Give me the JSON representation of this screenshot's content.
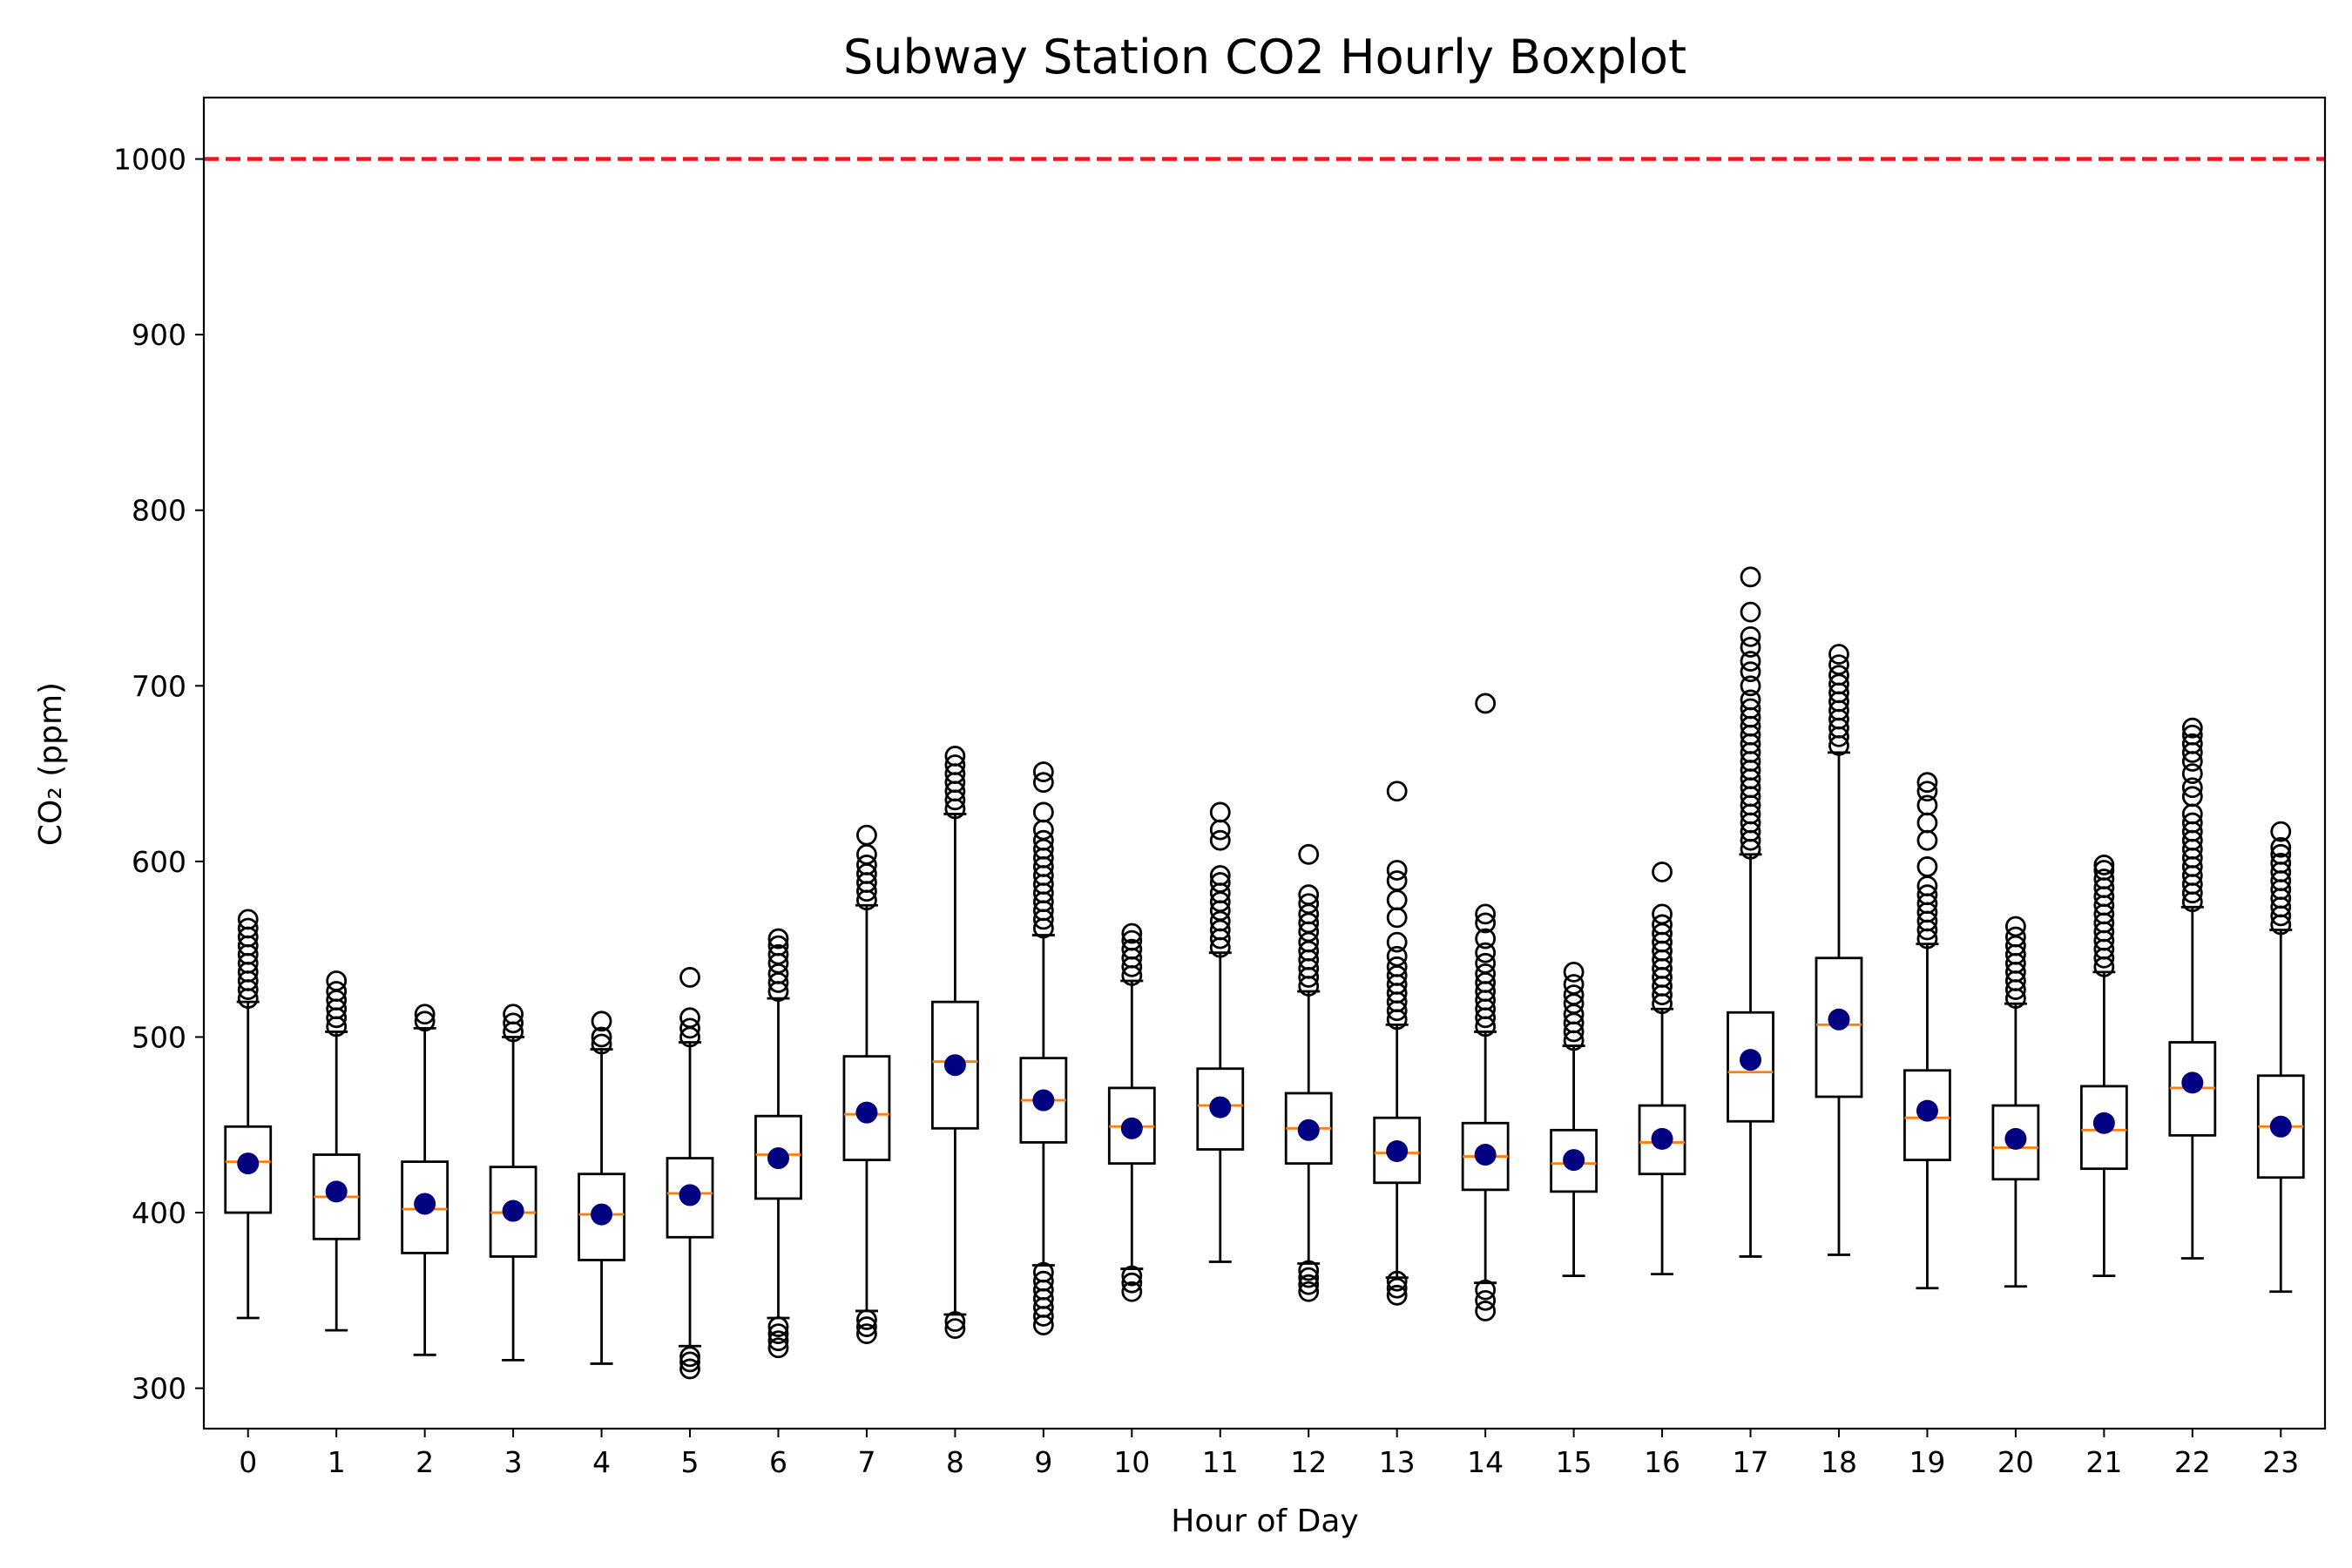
{
  "chart_data": {
    "type": "boxplot",
    "title": "Subway Station CO2 Hourly Boxplot",
    "xlabel": "Hour of Day",
    "ylabel": "CO₂ (ppm)",
    "ylim": [
      277,
      1035
    ],
    "yticks": [
      300,
      400,
      500,
      600,
      700,
      800,
      900,
      1000
    ],
    "grid": false,
    "threshold": {
      "value": 1000,
      "color": "#e8191c",
      "style": "dashed"
    },
    "colors": {
      "box": "#000000",
      "median": "#ff7f0e",
      "mean": "#000080",
      "outlier": "#000000"
    },
    "categories": [
      "0",
      "1",
      "2",
      "3",
      "4",
      "5",
      "6",
      "7",
      "8",
      "9",
      "10",
      "11",
      "12",
      "13",
      "14",
      "15",
      "16",
      "17",
      "18",
      "19",
      "20",
      "21",
      "22",
      "23"
    ],
    "boxes": [
      {
        "hour": "0",
        "whislo": 340,
        "q1": 400,
        "med": 429,
        "q3": 449,
        "whishi": 520,
        "mean": 428,
        "fliers": [
          522,
          527,
          532,
          537,
          542,
          547,
          552,
          557,
          562,
          567
        ]
      },
      {
        "hour": "1",
        "whislo": 333,
        "q1": 385,
        "med": 409,
        "q3": 433,
        "whishi": 503,
        "mean": 412,
        "fliers": [
          506,
          511,
          516,
          521,
          526,
          532
        ]
      },
      {
        "hour": "2",
        "whislo": 319,
        "q1": 377,
        "med": 402,
        "q3": 429,
        "whishi": 505,
        "mean": 405,
        "fliers": [
          509,
          513
        ]
      },
      {
        "hour": "3",
        "whislo": 316,
        "q1": 375,
        "med": 400,
        "q3": 426,
        "whishi": 500,
        "mean": 401,
        "fliers": [
          503,
          508,
          513
        ]
      },
      {
        "hour": "4",
        "whislo": 314,
        "q1": 373,
        "med": 399,
        "q3": 422,
        "whishi": 493,
        "mean": 399,
        "fliers": [
          496,
          500,
          509
        ]
      },
      {
        "hour": "5",
        "whislo": 324,
        "q1": 386,
        "med": 411,
        "q3": 431,
        "whishi": 497,
        "mean": 410,
        "fliers": [
          311,
          315,
          318,
          500,
          505,
          511,
          534
        ]
      },
      {
        "hour": "6",
        "whislo": 340,
        "q1": 408,
        "med": 433,
        "q3": 455,
        "whishi": 522,
        "mean": 431,
        "fliers": [
          323,
          327,
          331,
          335,
          526,
          531,
          536,
          542,
          547,
          552,
          556
        ]
      },
      {
        "hour": "7",
        "whislo": 344,
        "q1": 430,
        "med": 456,
        "q3": 489,
        "whishi": 575,
        "mean": 457,
        "fliers": [
          331,
          335,
          339,
          578,
          583,
          588,
          593,
          598,
          604,
          615
        ]
      },
      {
        "hour": "8",
        "whislo": 342,
        "q1": 448,
        "med": 486,
        "q3": 520,
        "whishi": 627,
        "mean": 484,
        "fliers": [
          334,
          338,
          630,
          635,
          640,
          645,
          650,
          655,
          660
        ]
      },
      {
        "hour": "9",
        "whislo": 370,
        "q1": 440,
        "med": 464,
        "q3": 488,
        "whishi": 558,
        "mean": 464,
        "fliers": [
          336,
          341,
          346,
          351,
          356,
          361,
          366,
          562,
          567,
          572,
          577,
          582,
          587,
          592,
          597,
          602,
          607,
          612,
          618,
          628,
          645,
          651
        ]
      },
      {
        "hour": "10",
        "whislo": 368,
        "q1": 428,
        "med": 449,
        "q3": 471,
        "whishi": 532,
        "mean": 448,
        "fliers": [
          355,
          360,
          364,
          535,
          540,
          545,
          550,
          555,
          559
        ]
      },
      {
        "hour": "11",
        "whislo": 372,
        "q1": 436,
        "med": 461,
        "q3": 482,
        "whishi": 548,
        "mean": 460,
        "fliers": [
          551,
          556,
          561,
          566,
          572,
          577,
          582,
          588,
          592,
          612,
          618,
          628
        ]
      },
      {
        "hour": "12",
        "whislo": 371,
        "q1": 428,
        "med": 448,
        "q3": 468,
        "whishi": 526,
        "mean": 447,
        "fliers": [
          355,
          359,
          363,
          367,
          529,
          534,
          539,
          544,
          549,
          554,
          560,
          565,
          570,
          576,
          581,
          604
        ]
      },
      {
        "hour": "13",
        "whislo": 363,
        "q1": 417,
        "med": 434,
        "q3": 454,
        "whishi": 507,
        "mean": 435,
        "fliers": [
          353,
          357,
          361,
          510,
          515,
          520,
          525,
          530,
          535,
          540,
          546,
          554,
          568,
          578,
          589,
          595,
          640
        ]
      },
      {
        "hour": "14",
        "whislo": 360,
        "q1": 413,
        "med": 432,
        "q3": 451,
        "whishi": 503,
        "mean": 433,
        "fliers": [
          344,
          350,
          356,
          506,
          511,
          516,
          521,
          526,
          531,
          536,
          542,
          548,
          556,
          565,
          570,
          690
        ]
      },
      {
        "hour": "15",
        "whislo": 364,
        "q1": 412,
        "med": 428,
        "q3": 447,
        "whishi": 495,
        "mean": 430,
        "fliers": [
          498,
          503,
          508,
          513,
          519,
          524,
          530,
          537
        ]
      },
      {
        "hour": "16",
        "whislo": 365,
        "q1": 422,
        "med": 440,
        "q3": 461,
        "whishi": 516,
        "mean": 442,
        "fliers": [
          519,
          524,
          529,
          534,
          539,
          544,
          549,
          554,
          559,
          564,
          570,
          594
        ]
      },
      {
        "hour": "17",
        "whislo": 375,
        "q1": 452,
        "med": 480,
        "q3": 514,
        "whishi": 604,
        "mean": 487,
        "fliers": [
          607,
          612,
          617,
          622,
          627,
          632,
          637,
          642,
          647,
          652,
          657,
          662,
          667,
          672,
          677,
          682,
          687,
          692,
          700,
          708,
          714,
          722,
          728,
          742,
          762
        ]
      },
      {
        "hour": "18",
        "whislo": 376,
        "q1": 466,
        "med": 507,
        "q3": 545,
        "whishi": 662,
        "mean": 510,
        "fliers": [
          666,
          671,
          676,
          681,
          686,
          691,
          696,
          701,
          706,
          712,
          718
        ]
      },
      {
        "hour": "19",
        "whislo": 357,
        "q1": 430,
        "med": 454,
        "q3": 481,
        "whishi": 553,
        "mean": 458,
        "fliers": [
          556,
          561,
          566,
          571,
          576,
          581,
          586,
          597,
          612,
          622,
          632,
          640,
          645
        ]
      },
      {
        "hour": "20",
        "whislo": 358,
        "q1": 419,
        "med": 437,
        "q3": 461,
        "whishi": 519,
        "mean": 442,
        "fliers": [
          522,
          527,
          532,
          537,
          542,
          547,
          552,
          557,
          563
        ]
      },
      {
        "hour": "21",
        "whislo": 364,
        "q1": 425,
        "med": 447,
        "q3": 472,
        "whishi": 537,
        "mean": 451,
        "fliers": [
          540,
          545,
          550,
          555,
          560,
          565,
          570,
          575,
          580,
          585,
          590,
          595,
          598
        ]
      },
      {
        "hour": "22",
        "whislo": 374,
        "q1": 444,
        "med": 471,
        "q3": 497,
        "whishi": 574,
        "mean": 474,
        "fliers": [
          577,
          582,
          587,
          592,
          597,
          602,
          607,
          612,
          617,
          622,
          627,
          637,
          642,
          650,
          657,
          662,
          667,
          672,
          676
        ]
      },
      {
        "hour": "23",
        "whislo": 355,
        "q1": 420,
        "med": 449,
        "q3": 478,
        "whishi": 561,
        "mean": 449,
        "fliers": [
          564,
          569,
          574,
          579,
          584,
          589,
          594,
          599,
          604,
          608,
          617
        ]
      }
    ]
  }
}
